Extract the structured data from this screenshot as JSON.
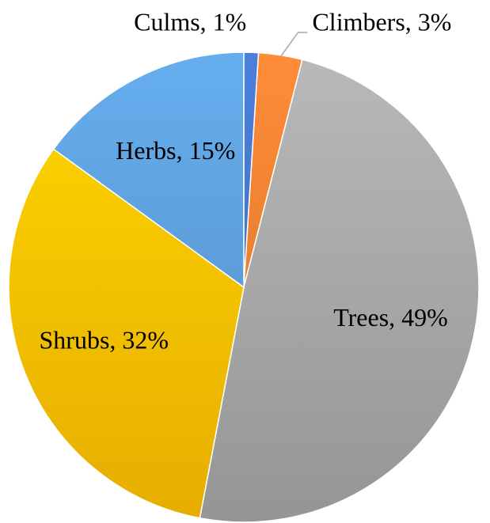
{
  "chart_data": {
    "type": "pie",
    "labels": [
      "Culms, 1%",
      "Climbers, 3%",
      "Trees, 49%",
      "Shrubs, 32%",
      "Herbs, 15%"
    ],
    "values": [
      1,
      3,
      49,
      32,
      15
    ],
    "colors": [
      "#4472c4",
      "#ed7d31",
      "#a5a5a5",
      "#ffc000",
      "#5b9bd5"
    ],
    "start_angle": 0,
    "direction": "clockwise"
  }
}
